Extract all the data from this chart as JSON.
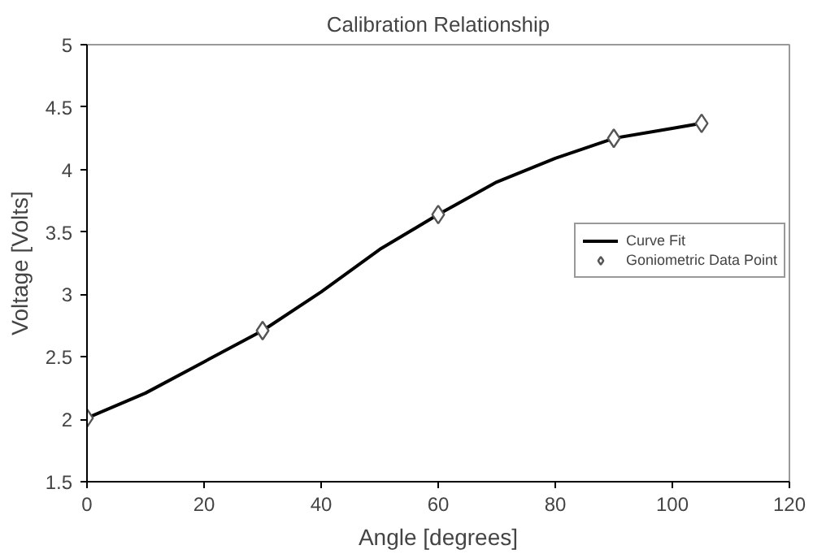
{
  "chart_data": {
    "type": "line",
    "title": "Calibration Relationship",
    "xlabel": "Angle [degrees]",
    "ylabel": "Voltage [Volts]",
    "xlim": [
      0,
      120
    ],
    "xticks": [
      0,
      20,
      40,
      60,
      80,
      100,
      120
    ],
    "ylim": [
      1.5,
      5
    ],
    "yticks": [
      1.5,
      2,
      2.5,
      3,
      3.5,
      4,
      4.5,
      5
    ],
    "grid": false,
    "legend": "right",
    "series": [
      {
        "name": "Curve Fit",
        "color": "#000000",
        "marker": "none",
        "x": [
          0,
          10,
          20,
          30,
          40,
          50,
          60,
          70,
          80,
          90,
          100,
          105
        ],
        "values": [
          2.01,
          2.21,
          2.46,
          2.71,
          3.02,
          3.36,
          3.64,
          3.9,
          4.09,
          4.25,
          4.33,
          4.37
        ]
      },
      {
        "name": "Goniometric Data Point",
        "type": "scatter",
        "color": "#555555",
        "marker": "diamond",
        "x": [
          0,
          30,
          60,
          90,
          105
        ],
        "values": [
          2.01,
          2.71,
          3.64,
          4.25,
          4.37
        ]
      }
    ]
  }
}
